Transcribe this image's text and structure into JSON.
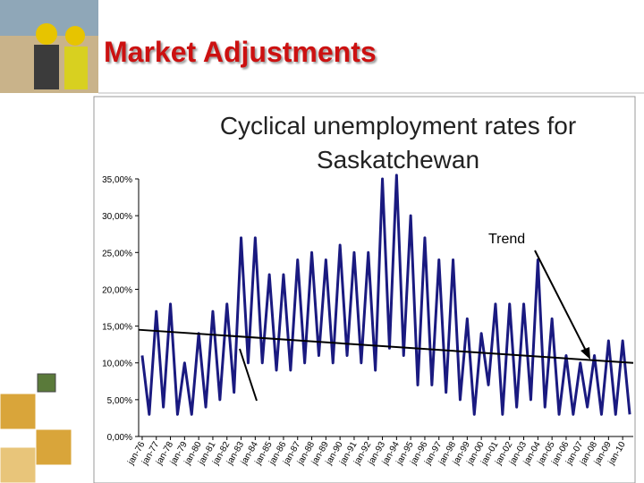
{
  "slide": {
    "title": "Market Adjustments"
  },
  "chart_data": {
    "type": "line",
    "title": "Cyclical unemployment rates for Saskatchewan",
    "categories": [
      "jan-76",
      null,
      "jan-77",
      null,
      "jan-78",
      null,
      "jan-79",
      null,
      "jan-80",
      null,
      "jan-81",
      null,
      "jan-82",
      null,
      "jan-83",
      null,
      "jan-84",
      null,
      "jan-85",
      null,
      "jan-86",
      null,
      "jan-87",
      null,
      "jan-88",
      null,
      "jan-89",
      null,
      "jan-90",
      null,
      "jan-91",
      null,
      "jan-92",
      null,
      "jan-93",
      null,
      "jan-94",
      null,
      "jan-95",
      null,
      "jan-96",
      null,
      "jan-97",
      null,
      "jan-98",
      null,
      "jan-99",
      null,
      "jan-00",
      null,
      "jan-01",
      null,
      "jan-02",
      null,
      "jan-03",
      null,
      "jan-04",
      null,
      "jan-05",
      null,
      "jan-06",
      null,
      "jan-07",
      null,
      "jan-08",
      null,
      "jan-09",
      null,
      "jan-10",
      null
    ],
    "series": [
      {
        "color": "#1a1a80",
        "values": [
          11,
          3,
          17,
          4,
          18,
          3,
          10,
          3,
          14,
          4,
          17,
          5,
          18,
          6,
          27,
          10,
          27,
          10,
          22,
          9,
          22,
          9,
          24,
          10,
          25,
          11,
          24,
          10,
          26,
          11,
          25,
          10,
          25,
          9,
          35,
          12,
          35.5,
          11,
          30,
          7,
          27,
          7,
          24,
          6,
          24,
          5,
          16,
          3,
          14,
          7,
          18,
          3,
          18,
          4,
          18,
          5,
          24,
          4,
          16,
          3,
          11,
          3,
          10,
          4,
          11,
          3,
          13,
          3,
          13,
          3
        ]
      }
    ],
    "trend": {
      "color": "#000000",
      "values": [
        14.5,
        10
      ]
    },
    "annotation": "Trend",
    "ylim": [
      0,
      35
    ],
    "yticks": [
      {
        "value": 0,
        "label": "0,00%"
      },
      {
        "value": 5,
        "label": "5,00%"
      },
      {
        "value": 10,
        "label": "10,00%"
      },
      {
        "value": 15,
        "label": "15,00%"
      },
      {
        "value": 20,
        "label": "20,00%"
      },
      {
        "value": 25,
        "label": "25,00%"
      },
      {
        "value": 30,
        "label": "30,00%"
      },
      {
        "value": 35,
        "label": "35,00%"
      }
    ]
  }
}
